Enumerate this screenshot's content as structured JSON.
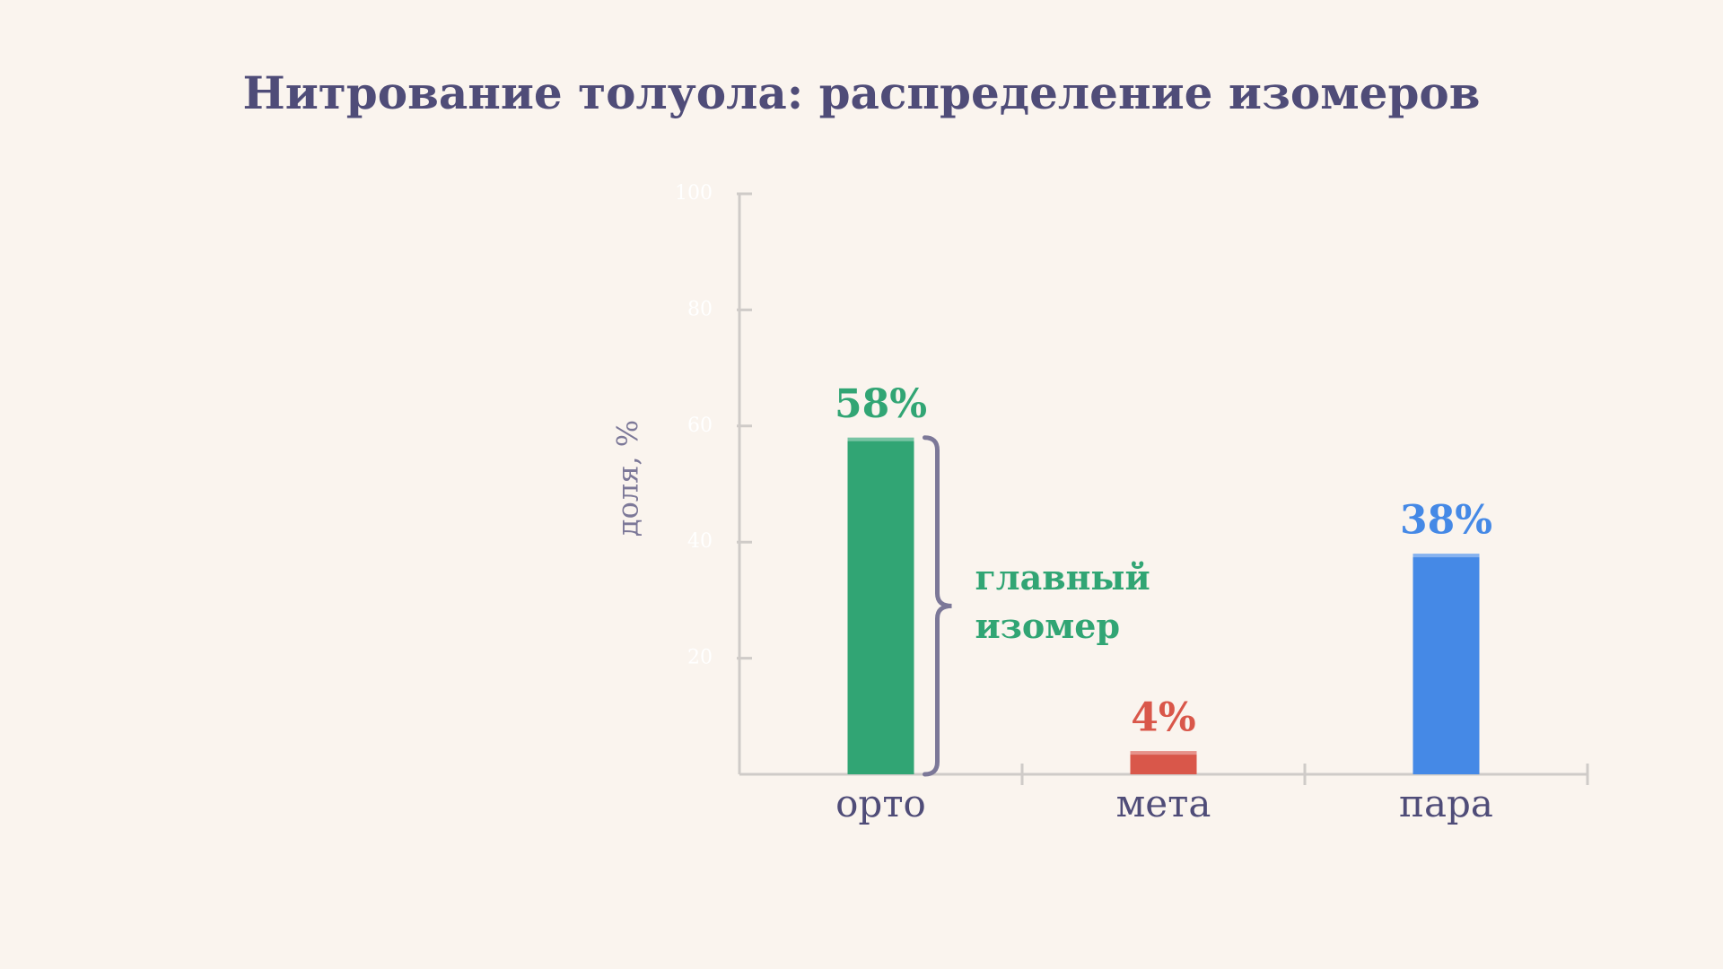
{
  "chart_data": {
    "type": "bar",
    "title": "Нитрование толуола: распределение изомеров",
    "ylabel": "доля, %",
    "categories": [
      "орто",
      "мета",
      "пара"
    ],
    "values": [
      58,
      4,
      38
    ],
    "value_labels": [
      "58%",
      "4%",
      "38%"
    ],
    "colors": [
      "#31a574",
      "#d9574a",
      "#4589e6"
    ],
    "ylim": [
      0,
      100
    ],
    "yticks": [
      20,
      40,
      60,
      80,
      100
    ],
    "annotation": [
      "главный",
      "изомер"
    ]
  }
}
